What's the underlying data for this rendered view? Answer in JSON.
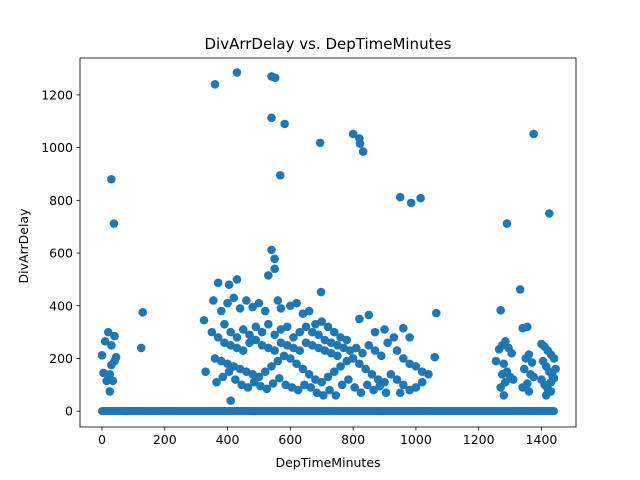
{
  "chart_data": {
    "type": "scatter",
    "title": "DivArrDelay vs. DepTimeMinutes",
    "xlabel": "DepTimeMinutes",
    "ylabel": "DivArrDelay",
    "xlim": [
      -70,
      1510
    ],
    "ylim": [
      -60,
      1340
    ],
    "xticks": [
      0,
      200,
      400,
      600,
      800,
      1000,
      1200,
      1400
    ],
    "yticks": [
      0,
      200,
      400,
      600,
      800,
      1000,
      1200
    ],
    "grid": false,
    "legend": "none",
    "marker_color": "#1f77b4",
    "baseline_band": {
      "x_start": 0,
      "x_end": 1440,
      "y": 0
    },
    "points": [
      [
        430,
        1285
      ],
      [
        540,
        1270
      ],
      [
        552,
        1265
      ],
      [
        360,
        1240
      ],
      [
        540,
        1113
      ],
      [
        582,
        1090
      ],
      [
        800,
        1052
      ],
      [
        1375,
        1052
      ],
      [
        820,
        1035
      ],
      [
        822,
        1015
      ],
      [
        695,
        1018
      ],
      [
        832,
        985
      ],
      [
        30,
        880
      ],
      [
        568,
        895
      ],
      [
        950,
        812
      ],
      [
        1015,
        808
      ],
      [
        985,
        790
      ],
      [
        1425,
        750
      ],
      [
        38,
        712
      ],
      [
        1290,
        712
      ],
      [
        540,
        612
      ],
      [
        550,
        578
      ],
      [
        550,
        540
      ],
      [
        530,
        515
      ],
      [
        430,
        500
      ],
      [
        370,
        487
      ],
      [
        405,
        480
      ],
      [
        1270,
        383
      ],
      [
        1332,
        462
      ],
      [
        698,
        452
      ],
      [
        130,
        375
      ],
      [
        1065,
        372
      ],
      [
        20,
        300
      ],
      [
        40,
        285
      ],
      [
        10,
        265
      ],
      [
        30,
        250
      ],
      [
        45,
        205
      ],
      [
        40,
        190
      ],
      [
        0,
        212
      ],
      [
        30,
        175
      ],
      [
        25,
        140
      ],
      [
        5,
        145
      ],
      [
        15,
        115
      ],
      [
        35,
        115
      ],
      [
        25,
        75
      ],
      [
        125,
        240
      ],
      [
        410,
        40
      ],
      [
        325,
        345
      ],
      [
        330,
        150
      ],
      [
        355,
        420
      ],
      [
        380,
        380
      ],
      [
        400,
        410
      ],
      [
        420,
        430
      ],
      [
        440,
        390
      ],
      [
        460,
        420
      ],
      [
        480,
        395
      ],
      [
        500,
        410
      ],
      [
        520,
        380
      ],
      [
        560,
        420
      ],
      [
        570,
        390
      ],
      [
        600,
        400
      ],
      [
        620,
        410
      ],
      [
        640,
        370
      ],
      [
        660,
        380
      ],
      [
        680,
        330
      ],
      [
        700,
        340
      ],
      [
        720,
        320
      ],
      [
        740,
        300
      ],
      [
        760,
        280
      ],
      [
        780,
        270
      ],
      [
        350,
        300
      ],
      [
        370,
        280
      ],
      [
        390,
        260
      ],
      [
        410,
        250
      ],
      [
        430,
        240
      ],
      [
        450,
        230
      ],
      [
        470,
        260
      ],
      [
        490,
        270
      ],
      [
        510,
        250
      ],
      [
        530,
        240
      ],
      [
        550,
        230
      ],
      [
        570,
        260
      ],
      [
        590,
        250
      ],
      [
        610,
        240
      ],
      [
        630,
        230
      ],
      [
        650,
        260
      ],
      [
        670,
        250
      ],
      [
        690,
        240
      ],
      [
        710,
        230
      ],
      [
        730,
        220
      ],
      [
        750,
        210
      ],
      [
        360,
        200
      ],
      [
        380,
        190
      ],
      [
        400,
        180
      ],
      [
        420,
        170
      ],
      [
        440,
        160
      ],
      [
        460,
        150
      ],
      [
        480,
        140
      ],
      [
        500,
        130
      ],
      [
        520,
        150
      ],
      [
        540,
        170
      ],
      [
        560,
        190
      ],
      [
        580,
        210
      ],
      [
        600,
        200
      ],
      [
        620,
        180
      ],
      [
        640,
        160
      ],
      [
        660,
        140
      ],
      [
        680,
        120
      ],
      [
        700,
        110
      ],
      [
        720,
        130
      ],
      [
        740,
        150
      ],
      [
        760,
        170
      ],
      [
        780,
        190
      ],
      [
        800,
        200
      ],
      [
        820,
        180
      ],
      [
        840,
        160
      ],
      [
        860,
        140
      ],
      [
        880,
        120
      ],
      [
        900,
        110
      ],
      [
        365,
        110
      ],
      [
        385,
        130
      ],
      [
        405,
        150
      ],
      [
        425,
        120
      ],
      [
        445,
        100
      ],
      [
        465,
        90
      ],
      [
        485,
        110
      ],
      [
        505,
        95
      ],
      [
        525,
        85
      ],
      [
        545,
        105
      ],
      [
        565,
        125
      ],
      [
        585,
        100
      ],
      [
        605,
        90
      ],
      [
        625,
        80
      ],
      [
        645,
        100
      ],
      [
        665,
        90
      ],
      [
        685,
        70
      ],
      [
        705,
        60
      ],
      [
        725,
        80
      ],
      [
        745,
        60
      ],
      [
        765,
        100
      ],
      [
        785,
        120
      ],
      [
        805,
        90
      ],
      [
        825,
        70
      ],
      [
        845,
        100
      ],
      [
        865,
        80
      ],
      [
        885,
        95
      ],
      [
        905,
        70
      ],
      [
        820,
        350
      ],
      [
        850,
        365
      ],
      [
        870,
        300
      ],
      [
        900,
        310
      ],
      [
        930,
        280
      ],
      [
        960,
        315
      ],
      [
        980,
        280
      ],
      [
        940,
        230
      ],
      [
        960,
        200
      ],
      [
        980,
        180
      ],
      [
        1000,
        170
      ],
      [
        1020,
        150
      ],
      [
        1040,
        140
      ],
      [
        1060,
        205
      ],
      [
        920,
        140
      ],
      [
        940,
        120
      ],
      [
        960,
        100
      ],
      [
        980,
        80
      ],
      [
        1000,
        90
      ],
      [
        1020,
        110
      ],
      [
        950,
        70
      ],
      [
        390,
        330
      ],
      [
        410,
        300
      ],
      [
        430,
        280
      ],
      [
        450,
        310
      ],
      [
        470,
        290
      ],
      [
        490,
        320
      ],
      [
        510,
        300
      ],
      [
        530,
        330
      ],
      [
        550,
        290
      ],
      [
        570,
        310
      ],
      [
        590,
        320
      ],
      [
        610,
        280
      ],
      [
        630,
        300
      ],
      [
        650,
        320
      ],
      [
        670,
        300
      ],
      [
        690,
        290
      ],
      [
        710,
        270
      ],
      [
        730,
        260
      ],
      [
        750,
        250
      ],
      [
        770,
        240
      ],
      [
        790,
        230
      ],
      [
        810,
        240
      ],
      [
        830,
        220
      ],
      [
        850,
        250
      ],
      [
        870,
        230
      ],
      [
        890,
        210
      ],
      [
        910,
        260
      ],
      [
        1255,
        190
      ],
      [
        1265,
        235
      ],
      [
        1275,
        250
      ],
      [
        1285,
        265
      ],
      [
        1295,
        240
      ],
      [
        1305,
        220
      ],
      [
        1280,
        180
      ],
      [
        1290,
        150
      ],
      [
        1300,
        130
      ],
      [
        1310,
        120
      ],
      [
        1275,
        140
      ],
      [
        1285,
        110
      ],
      [
        1270,
        90
      ],
      [
        1280,
        60
      ],
      [
        1340,
        315
      ],
      [
        1355,
        320
      ],
      [
        1350,
        200
      ],
      [
        1360,
        215
      ],
      [
        1370,
        185
      ],
      [
        1345,
        160
      ],
      [
        1365,
        140
      ],
      [
        1375,
        130
      ],
      [
        1355,
        105
      ],
      [
        1340,
        90
      ],
      [
        1360,
        75
      ],
      [
        1400,
        255
      ],
      [
        1410,
        245
      ],
      [
        1420,
        230
      ],
      [
        1430,
        215
      ],
      [
        1440,
        200
      ],
      [
        1405,
        190
      ],
      [
        1415,
        170
      ],
      [
        1425,
        150
      ],
      [
        1435,
        135
      ],
      [
        1400,
        120
      ],
      [
        1410,
        100
      ],
      [
        1420,
        85
      ],
      [
        1430,
        110
      ],
      [
        1440,
        125
      ],
      [
        1415,
        60
      ],
      [
        1430,
        75
      ],
      [
        1445,
        160
      ]
    ]
  }
}
